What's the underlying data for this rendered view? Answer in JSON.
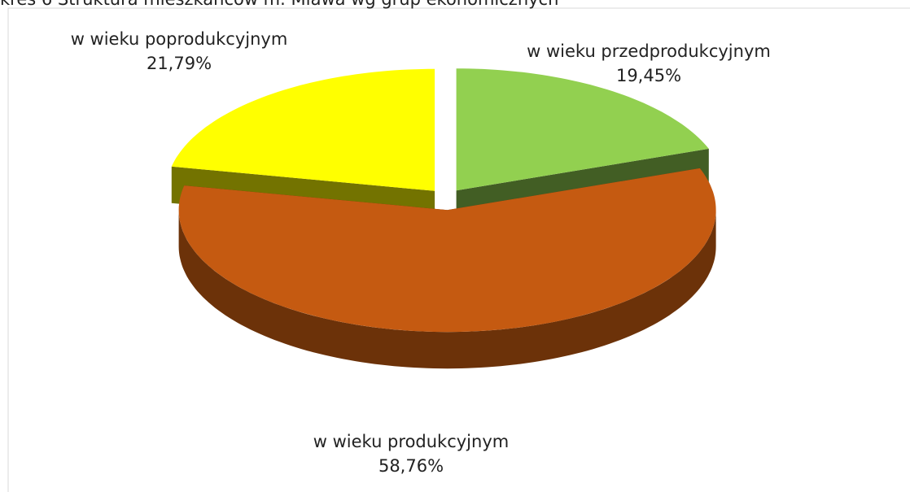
{
  "chart_data": {
    "type": "pie3d",
    "title": "kres 6 Struktura mieszkańców m. Mława wg grup ekonomicznych",
    "categories": [
      "w wieku przedprodukcyjnym",
      "w wieku produkcyjnym",
      "w wieku poprodukcyjnym"
    ],
    "values": [
      19.45,
      58.76,
      21.79
    ],
    "value_labels": [
      "19,45%",
      "58,76%",
      "21,79%"
    ],
    "colors": [
      "#92d050",
      "#c55a11",
      "#ffff00"
    ]
  }
}
